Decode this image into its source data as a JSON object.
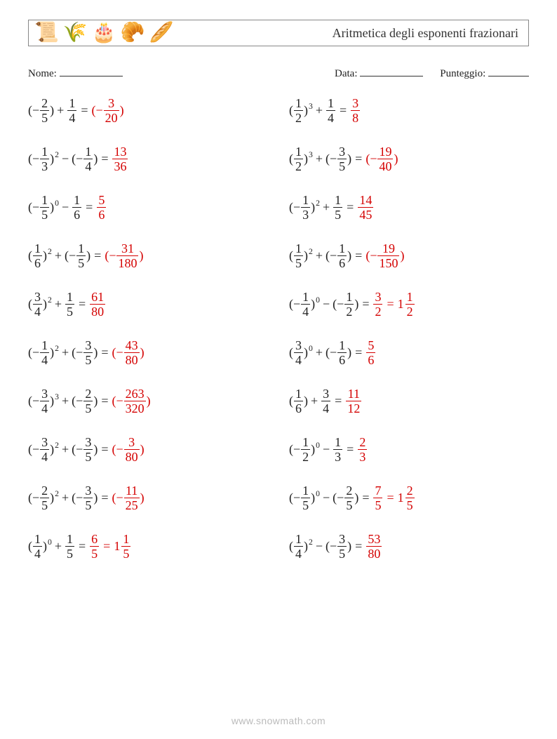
{
  "header": {
    "icons": [
      "📜",
      "🌾",
      "🎂",
      "🥐",
      "🥖"
    ],
    "title": "Aritmetica degli esponenti frazionari"
  },
  "meta": {
    "name_label": "Nome:",
    "date_label": "Data:",
    "score_label": "Punteggio:"
  },
  "colors": {
    "text": "#222222",
    "answer": "#d40000",
    "border": "#888888",
    "footer": "#bbbbbb"
  },
  "footer": "www.snowmath.com",
  "problems": [
    {
      "l": {
        "b": {
          "neg": true,
          "n": "2",
          "d": "5"
        }
      },
      "op": "+",
      "r": {
        "n": "1",
        "d": "4"
      },
      "a": [
        {
          "neg_paren": true,
          "n": "3",
          "d": "20"
        }
      ]
    },
    {
      "l": {
        "b": {
          "n": "1",
          "d": "2"
        },
        "e": "3"
      },
      "op": "+",
      "r": {
        "n": "1",
        "d": "4"
      },
      "a": [
        {
          "n": "3",
          "d": "8"
        }
      ]
    },
    {
      "l": {
        "b": {
          "neg": true,
          "n": "1",
          "d": "3"
        },
        "e": "2"
      },
      "op": "−",
      "r": {
        "neg_paren": true,
        "n": "1",
        "d": "4"
      },
      "a": [
        {
          "n": "13",
          "d": "36"
        }
      ]
    },
    {
      "l": {
        "b": {
          "n": "1",
          "d": "2"
        },
        "e": "3"
      },
      "op": "+",
      "r": {
        "neg_paren": true,
        "n": "3",
        "d": "5"
      },
      "a": [
        {
          "neg_paren": true,
          "n": "19",
          "d": "40"
        }
      ]
    },
    {
      "l": {
        "b": {
          "neg": true,
          "n": "1",
          "d": "5"
        },
        "e": "0"
      },
      "op": "−",
      "r": {
        "n": "1",
        "d": "6"
      },
      "a": [
        {
          "n": "5",
          "d": "6"
        }
      ]
    },
    {
      "l": {
        "b": {
          "neg": true,
          "n": "1",
          "d": "3"
        },
        "e": "2"
      },
      "op": "+",
      "r": {
        "n": "1",
        "d": "5"
      },
      "a": [
        {
          "n": "14",
          "d": "45"
        }
      ]
    },
    {
      "l": {
        "b": {
          "n": "1",
          "d": "6"
        },
        "e": "2"
      },
      "op": "+",
      "r": {
        "neg_paren": true,
        "n": "1",
        "d": "5"
      },
      "a": [
        {
          "neg_paren": true,
          "n": "31",
          "d": "180"
        }
      ]
    },
    {
      "l": {
        "b": {
          "n": "1",
          "d": "5"
        },
        "e": "2"
      },
      "op": "+",
      "r": {
        "neg_paren": true,
        "n": "1",
        "d": "6"
      },
      "a": [
        {
          "neg_paren": true,
          "n": "19",
          "d": "150"
        }
      ]
    },
    {
      "l": {
        "b": {
          "n": "3",
          "d": "4"
        },
        "e": "2"
      },
      "op": "+",
      "r": {
        "n": "1",
        "d": "5"
      },
      "a": [
        {
          "n": "61",
          "d": "80"
        }
      ]
    },
    {
      "l": {
        "b": {
          "neg": true,
          "n": "1",
          "d": "4"
        },
        "e": "0"
      },
      "op": "−",
      "r": {
        "neg_paren": true,
        "n": "1",
        "d": "2"
      },
      "a": [
        {
          "n": "3",
          "d": "2"
        },
        {
          "w": "1",
          "n": "1",
          "d": "2"
        }
      ]
    },
    {
      "l": {
        "b": {
          "neg": true,
          "n": "1",
          "d": "4"
        },
        "e": "2"
      },
      "op": "+",
      "r": {
        "neg_paren": true,
        "n": "3",
        "d": "5"
      },
      "a": [
        {
          "neg_paren": true,
          "n": "43",
          "d": "80"
        }
      ]
    },
    {
      "l": {
        "b": {
          "n": "3",
          "d": "4"
        },
        "e": "0"
      },
      "op": "+",
      "r": {
        "neg_paren": true,
        "n": "1",
        "d": "6"
      },
      "a": [
        {
          "n": "5",
          "d": "6"
        }
      ]
    },
    {
      "l": {
        "b": {
          "neg": true,
          "n": "3",
          "d": "4"
        },
        "e": "3"
      },
      "op": "+",
      "r": {
        "neg_paren": true,
        "n": "2",
        "d": "5"
      },
      "a": [
        {
          "neg_paren": true,
          "n": "263",
          "d": "320"
        }
      ]
    },
    {
      "l": {
        "b": {
          "n": "1",
          "d": "6"
        }
      },
      "op": "+",
      "r": {
        "n": "3",
        "d": "4"
      },
      "a": [
        {
          "n": "11",
          "d": "12"
        }
      ]
    },
    {
      "l": {
        "b": {
          "neg": true,
          "n": "3",
          "d": "4"
        },
        "e": "2"
      },
      "op": "+",
      "r": {
        "neg_paren": true,
        "n": "3",
        "d": "5"
      },
      "a": [
        {
          "neg_paren": true,
          "n": "3",
          "d": "80"
        }
      ]
    },
    {
      "l": {
        "b": {
          "neg": true,
          "n": "1",
          "d": "2"
        },
        "e": "0"
      },
      "op": "−",
      "r": {
        "n": "1",
        "d": "3"
      },
      "a": [
        {
          "n": "2",
          "d": "3"
        }
      ]
    },
    {
      "l": {
        "b": {
          "neg": true,
          "n": "2",
          "d": "5"
        },
        "e": "2"
      },
      "op": "+",
      "r": {
        "neg_paren": true,
        "n": "3",
        "d": "5"
      },
      "a": [
        {
          "neg_paren": true,
          "n": "11",
          "d": "25"
        }
      ]
    },
    {
      "l": {
        "b": {
          "neg": true,
          "n": "1",
          "d": "5"
        },
        "e": "0"
      },
      "op": "−",
      "r": {
        "neg_paren": true,
        "n": "2",
        "d": "5"
      },
      "a": [
        {
          "n": "7",
          "d": "5"
        },
        {
          "w": "1",
          "n": "2",
          "d": "5"
        }
      ]
    },
    {
      "l": {
        "b": {
          "n": "1",
          "d": "4"
        },
        "e": "0"
      },
      "op": "+",
      "r": {
        "n": "1",
        "d": "5"
      },
      "a": [
        {
          "n": "6",
          "d": "5"
        },
        {
          "w": "1",
          "n": "1",
          "d": "5"
        }
      ]
    },
    {
      "l": {
        "b": {
          "n": "1",
          "d": "4"
        },
        "e": "2"
      },
      "op": "−",
      "r": {
        "neg_paren": true,
        "n": "3",
        "d": "5"
      },
      "a": [
        {
          "n": "53",
          "d": "80"
        }
      ]
    }
  ]
}
